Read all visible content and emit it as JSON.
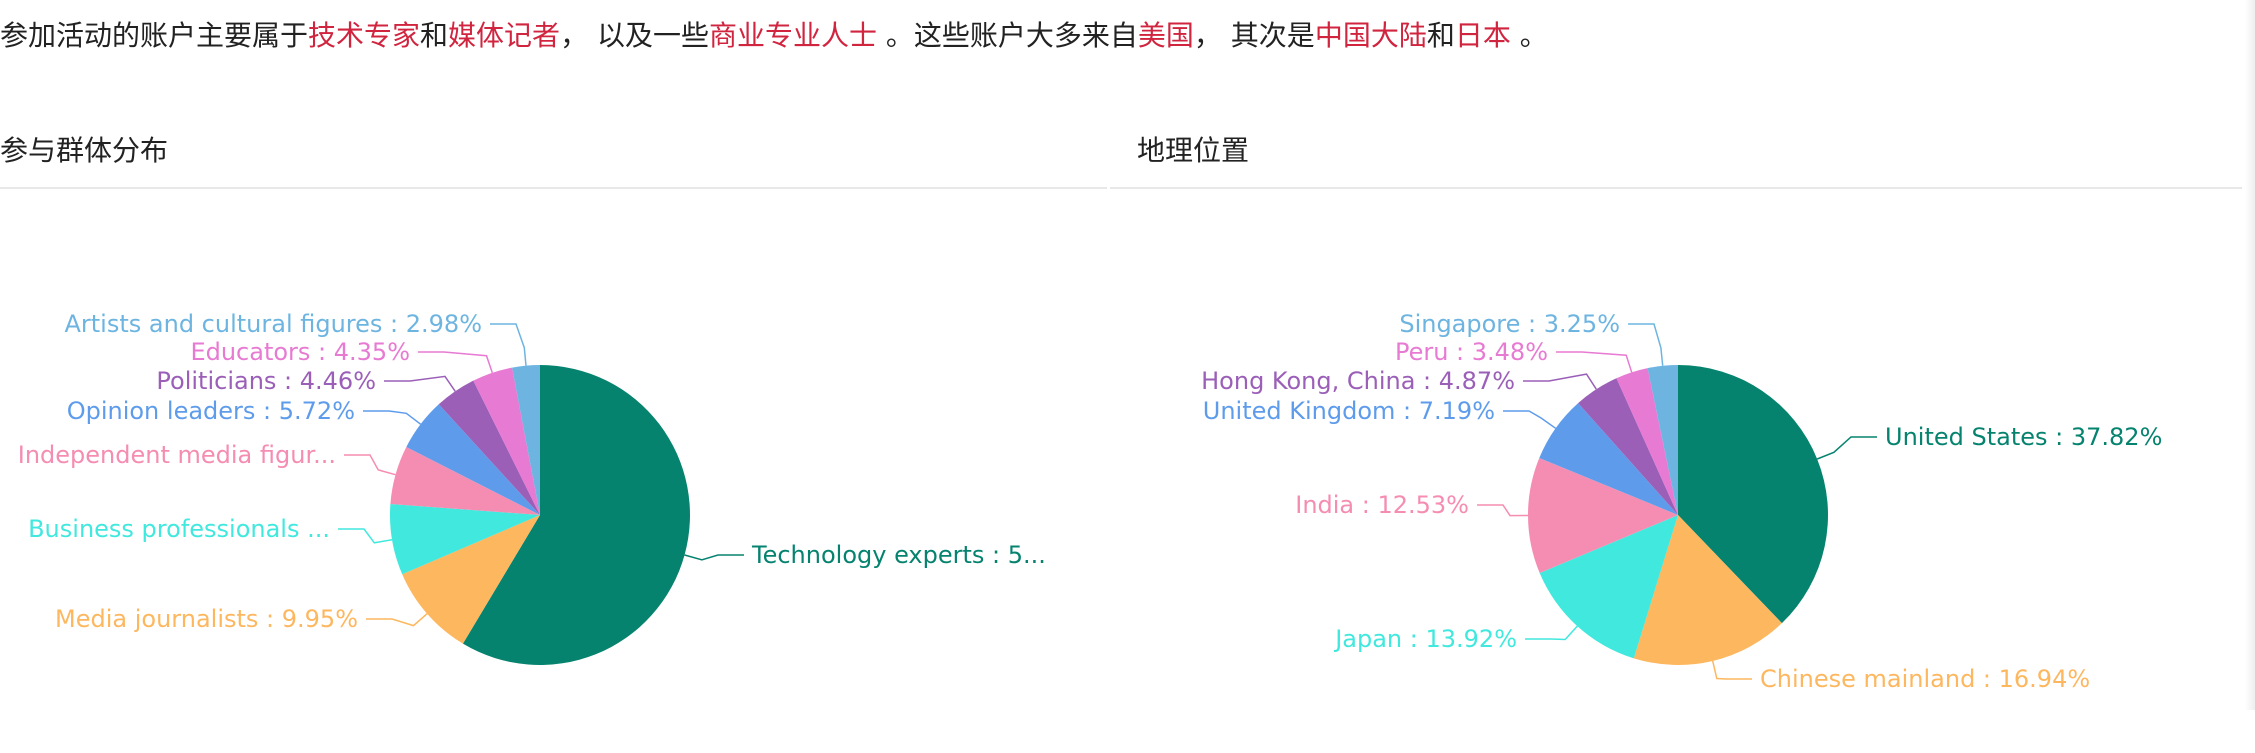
{
  "summary": {
    "parts": [
      {
        "text": "参加活动的账户主要属于",
        "hl": false
      },
      {
        "text": "技术专家",
        "hl": true
      },
      {
        "text": "和",
        "hl": false
      },
      {
        "text": "媒体记者",
        "hl": true
      },
      {
        "text": "， 以及一些",
        "hl": false
      },
      {
        "text": "商业专业人士",
        "hl": true
      },
      {
        "text": " 。这些账户大多来自",
        "hl": false
      },
      {
        "text": "美国",
        "hl": true
      },
      {
        "text": "， 其次是",
        "hl": false
      },
      {
        "text": "中国大陆",
        "hl": true
      },
      {
        "text": "和",
        "hl": false
      },
      {
        "text": "日本",
        "hl": true
      },
      {
        "text": " 。",
        "hl": false
      }
    ]
  },
  "panels": {
    "left_title": "参与群体分布",
    "right_title": "地理位置"
  },
  "colors": {
    "text": "#222222",
    "highlight": "#d0243f",
    "divider": "#e8e8e8"
  },
  "chart_data": [
    {
      "type": "pie",
      "title": "参与群体分布",
      "slices": [
        {
          "label": "Technology experts : 5...",
          "value": 58.59,
          "color": "#06836f"
        },
        {
          "label": "Media journalists : 9.95%",
          "value": 9.95,
          "color": "#fdb75f"
        },
        {
          "label": "Business professionals ...",
          "value": 7.63,
          "color": "#41e8dd"
        },
        {
          "label": "Independent media figur...",
          "value": 6.32,
          "color": "#f58db2"
        },
        {
          "label": "Opinion leaders : 5.72%",
          "value": 5.72,
          "color": "#5e9ceb"
        },
        {
          "label": "Politicians : 4.46%",
          "value": 4.46,
          "color": "#9b5fb8"
        },
        {
          "label": "Educators : 4.35%",
          "value": 4.35,
          "color": "#e77ad2"
        },
        {
          "label": "Artists and cultural figures : 2.98%",
          "value": 2.98,
          "color": "#6db5e0"
        }
      ]
    },
    {
      "type": "pie",
      "title": "地理位置",
      "slices": [
        {
          "label": "United States : 37.82%",
          "value": 37.82,
          "color": "#06836f"
        },
        {
          "label": "Chinese mainland : 16.94%",
          "value": 16.94,
          "color": "#fdb75f"
        },
        {
          "label": "Japan : 13.92%",
          "value": 13.92,
          "color": "#41e8dd"
        },
        {
          "label": "India : 12.53%",
          "value": 12.53,
          "color": "#f58db2"
        },
        {
          "label": "United Kingdom : 7.19%",
          "value": 7.19,
          "color": "#5e9ceb"
        },
        {
          "label": "Hong Kong, China : 4.87%",
          "value": 4.87,
          "color": "#9b5fb8"
        },
        {
          "label": "Peru : 3.48%",
          "value": 3.48,
          "color": "#e77ad2"
        },
        {
          "label": "Singapore : 3.25%",
          "value": 3.25,
          "color": "#6db5e0"
        }
      ]
    }
  ]
}
